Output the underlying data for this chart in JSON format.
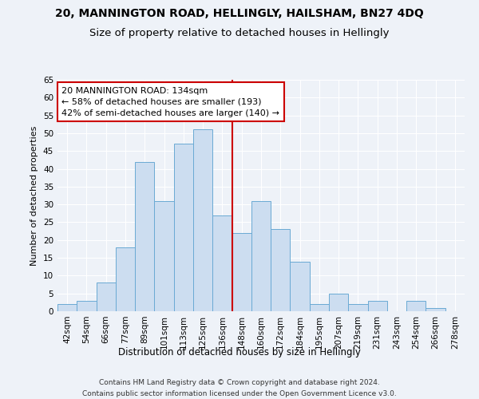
{
  "title1": "20, MANNINGTON ROAD, HELLINGLY, HAILSHAM, BN27 4DQ",
  "title2": "Size of property relative to detached houses in Hellingly",
  "xlabel": "Distribution of detached houses by size in Hellingly",
  "ylabel": "Number of detached properties",
  "bar_labels": [
    "42sqm",
    "54sqm",
    "66sqm",
    "77sqm",
    "89sqm",
    "101sqm",
    "113sqm",
    "125sqm",
    "136sqm",
    "148sqm",
    "160sqm",
    "172sqm",
    "184sqm",
    "195sqm",
    "207sqm",
    "219sqm",
    "231sqm",
    "243sqm",
    "254sqm",
    "266sqm",
    "278sqm"
  ],
  "bar_values": [
    2,
    3,
    8,
    18,
    42,
    31,
    47,
    51,
    27,
    22,
    31,
    23,
    14,
    2,
    5,
    2,
    3,
    0,
    3,
    1,
    0
  ],
  "bar_color": "#ccddf0",
  "bar_edgecolor": "#6aaad4",
  "vline_x_index": 8,
  "vline_color": "#cc0000",
  "annotation_line1": "20 MANNINGTON ROAD: 134sqm",
  "annotation_line2": "← 58% of detached houses are smaller (193)",
  "annotation_line3": "42% of semi-detached houses are larger (140) →",
  "annotation_box_facecolor": "#ffffff",
  "annotation_box_edgecolor": "#cc0000",
  "ylim": [
    0,
    65
  ],
  "yticks": [
    0,
    5,
    10,
    15,
    20,
    25,
    30,
    35,
    40,
    45,
    50,
    55,
    60,
    65
  ],
  "background_color": "#eef2f8",
  "grid_color": "#ffffff",
  "footer1": "Contains HM Land Registry data © Crown copyright and database right 2024.",
  "footer2": "Contains public sector information licensed under the Open Government Licence v3.0.",
  "title1_fontsize": 10,
  "title2_fontsize": 9.5,
  "xlabel_fontsize": 8.5,
  "ylabel_fontsize": 8,
  "tick_fontsize": 7.5,
  "annotation_fontsize": 8,
  "footer_fontsize": 6.5
}
